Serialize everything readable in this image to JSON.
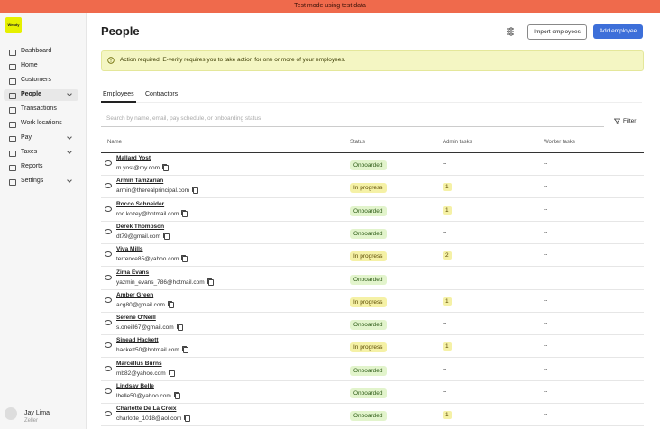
{
  "banner": "Test mode using test data",
  "sidebar": {
    "logo": "Wendy",
    "nav": [
      {
        "label": "Dashboard"
      },
      {
        "label": "Home"
      },
      {
        "label": "Customers"
      },
      {
        "label": "People",
        "active": true,
        "chevron": true
      },
      {
        "label": "Transactions"
      },
      {
        "label": "Work locations"
      },
      {
        "label": "Pay",
        "chevron": true
      },
      {
        "label": "Taxes",
        "chevron": true
      },
      {
        "label": "Reports"
      },
      {
        "label": "Settings",
        "chevron": true
      }
    ],
    "user": {
      "name": "Jay Lima",
      "company": "Zeller"
    }
  },
  "header": {
    "title": "People",
    "import_button": "Import employees",
    "add_button": "Add employee"
  },
  "alert": "Action required: E-verify requires you to take action for one or more of your employees.",
  "tabs": [
    {
      "label": "Employees",
      "active": true
    },
    {
      "label": "Contractors"
    }
  ],
  "search": {
    "placeholder": "Search by name, email, pay schedule, or onboarding status",
    "filter": "Filter"
  },
  "table": {
    "columns": [
      "Name",
      "Status",
      "Admin tasks",
      "Worker tasks"
    ],
    "rows": [
      {
        "name": "Mallard Yost",
        "email": "m.yost@my.com",
        "status": "Onboarded",
        "admin": "--",
        "worker": "--"
      },
      {
        "name": "Armin Tamzarian",
        "email": "armin@therealprincipal.com",
        "status": "In progress",
        "admin": 1,
        "worker": "--"
      },
      {
        "name": "Rocco Schneider",
        "email": "roc.kozey@hotmail.com",
        "status": "Onboarded",
        "admin": 1,
        "worker": "--"
      },
      {
        "name": "Derek Thompson",
        "email": "dt79@gmail.com",
        "status": "Onboarded",
        "admin": "--",
        "worker": "--"
      },
      {
        "name": "Viva Mills",
        "email": "terrence85@yahoo.com",
        "status": "In progress",
        "admin": 2,
        "worker": "--"
      },
      {
        "name": "Zima Evans",
        "email": "yazmin_evans_786@hotmail.com",
        "status": "Onboarded",
        "admin": "--",
        "worker": "--"
      },
      {
        "name": "Amber Green",
        "email": "acg80@gmail.com",
        "status": "In progress",
        "admin": 1,
        "worker": "--"
      },
      {
        "name": "Serene O'Neill",
        "email": "s.oneill67@gmail.com",
        "status": "Onboarded",
        "admin": "--",
        "worker": "--"
      },
      {
        "name": "Sinead Hackett",
        "email": "hackett50@hotmail.com",
        "status": "In progress",
        "admin": 1,
        "worker": "--"
      },
      {
        "name": "Marcellus Burns",
        "email": "mb82@yahoo.com",
        "status": "Onboarded",
        "admin": "--",
        "worker": "--"
      },
      {
        "name": "Lindsay Belle",
        "email": "lbelle50@yahoo.com",
        "status": "Onboarded",
        "admin": "--",
        "worker": "--"
      },
      {
        "name": "Charlotte De La Croix",
        "email": "charlotte_1018@aol.com",
        "status": "Onboarded",
        "admin": 1,
        "worker": "--"
      }
    ]
  }
}
